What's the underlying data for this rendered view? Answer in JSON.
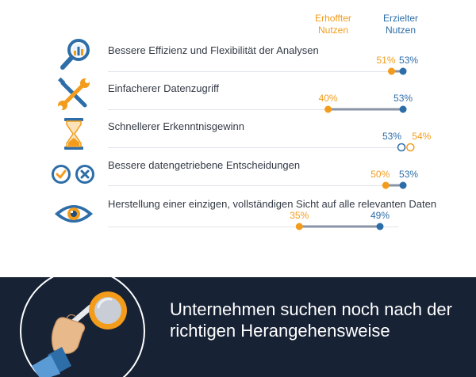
{
  "chart_data": {
    "type": "dumbbell",
    "legend": {
      "expected": "Erhoffter\nNutzen",
      "achieved": "Erzielter\nNutzen"
    },
    "colors": {
      "expected": "#f39c1c",
      "achieved": "#2d6da8",
      "bar": "#8a94a6",
      "text": "#333a45"
    },
    "unit": "%",
    "categories": [
      {
        "label": "Bessere Effizienz und Flexibilität der Analysen",
        "icon": "magnifier-chart-icon",
        "expected": 51,
        "achieved": 53
      },
      {
        "label": "Einfacherer Datenzugriff",
        "icon": "wrench-screwdriver-icon",
        "expected": 40,
        "achieved": 53
      },
      {
        "label": "Schnellerer Erkenntnisgewinn",
        "icon": "hourglass-icon",
        "expected": 54,
        "achieved": 53
      },
      {
        "label": "Bessere datengetriebene Entscheidungen",
        "icon": "check-cross-icon",
        "expected": 50,
        "achieved": 53
      },
      {
        "label": "Herstellung einer einzigen, vollständigen Sicht auf alle relevanten Daten",
        "icon": "eye-icon",
        "expected": 35,
        "achieved": 49
      }
    ]
  },
  "banner": {
    "text": "Unternehmen suchen noch nach der richtigen Herangehensweise",
    "icon": "hand-magnifier-icon",
    "background": "#172235"
  }
}
